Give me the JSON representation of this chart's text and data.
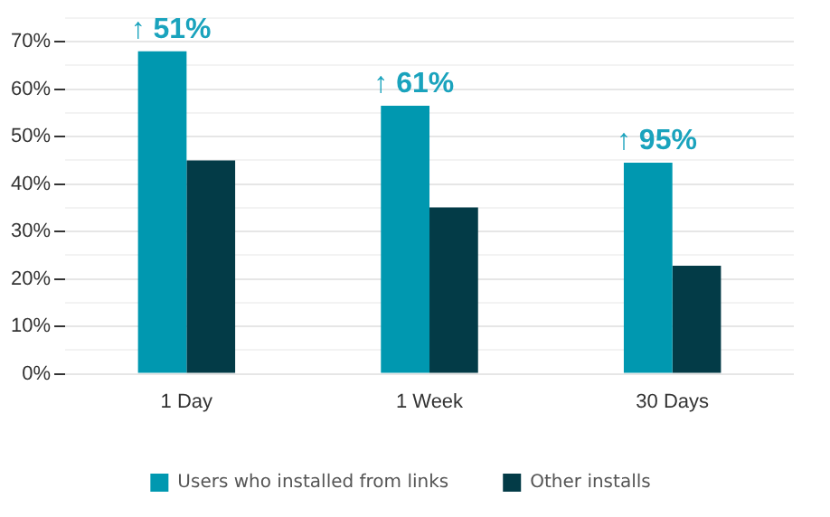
{
  "chart_data": {
    "type": "bar",
    "categories": [
      "1 Day",
      "1 Week",
      "30 Days"
    ],
    "series": [
      {
        "name": "Users who installed from links",
        "color": "#0098b0",
        "values": [
          68,
          56.5,
          44.5
        ]
      },
      {
        "name": "Other installs",
        "color": "#033b47",
        "values": [
          45,
          35.1,
          22.8
        ]
      }
    ],
    "ylim": [
      0,
      75
    ],
    "yticks": [
      {
        "value": 0,
        "label": "0%"
      },
      {
        "value": 5,
        "label": null
      },
      {
        "value": 10,
        "label": "10%"
      },
      {
        "value": 15,
        "label": null
      },
      {
        "value": 20,
        "label": "20%"
      },
      {
        "value": 25,
        "label": null
      },
      {
        "value": 30,
        "label": "30%"
      },
      {
        "value": 35,
        "label": null
      },
      {
        "value": 40,
        "label": "40%"
      },
      {
        "value": 45,
        "label": null
      },
      {
        "value": 50,
        "label": "50%"
      },
      {
        "value": 55,
        "label": null
      },
      {
        "value": 60,
        "label": "60%"
      },
      {
        "value": 65,
        "label": null
      },
      {
        "value": 70,
        "label": "70%"
      },
      {
        "value": 75,
        "label": null
      }
    ],
    "annotations": [
      {
        "text": "↑ 51%",
        "x": "1 Day",
        "y": 68
      },
      {
        "text": "↑ 61%",
        "x": "1 Week",
        "y": 56.5
      },
      {
        "text": "↑ 95%",
        "x": "30 Days",
        "y": 44.5
      }
    ],
    "grid": "y",
    "legend": "bottom"
  }
}
